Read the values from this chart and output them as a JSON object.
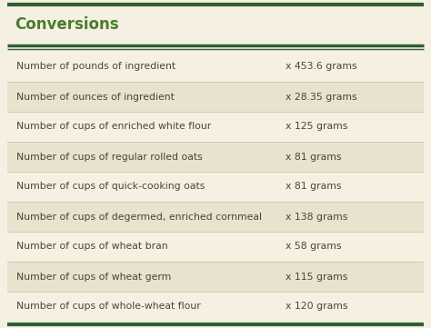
{
  "title": "Conversions",
  "title_color": "#4a7c2f",
  "title_fontsize": 12,
  "header_line_color": "#2d6030",
  "bg_color": "#f5f0e1",
  "row_alt_color": "#e8e2ce",
  "row_base_color": "#f5f0e1",
  "text_color": "#4a4535",
  "outer_border_color": "#2d6030",
  "col_split": 0.645,
  "rows": [
    [
      "Number of pounds of ingredient",
      "x 453.6 grams"
    ],
    [
      "Number of ounces of ingredient",
      "x 28.35 grams"
    ],
    [
      "Number of cups of enriched white flour",
      "x 125 grams"
    ],
    [
      "Number of cups of regular rolled oats",
      "x 81 grams"
    ],
    [
      "Number of cups of quick-cooking oats",
      "x 81 grams"
    ],
    [
      "Number of cups of degermed, enriched cornmeal",
      "x 138 grams"
    ],
    [
      "Number of cups of wheat bran",
      "x 58 grams"
    ],
    [
      "Number of cups of wheat germ",
      "x 115 grams"
    ],
    [
      "Number of cups of whole-wheat flour",
      "x 120 grams"
    ]
  ]
}
